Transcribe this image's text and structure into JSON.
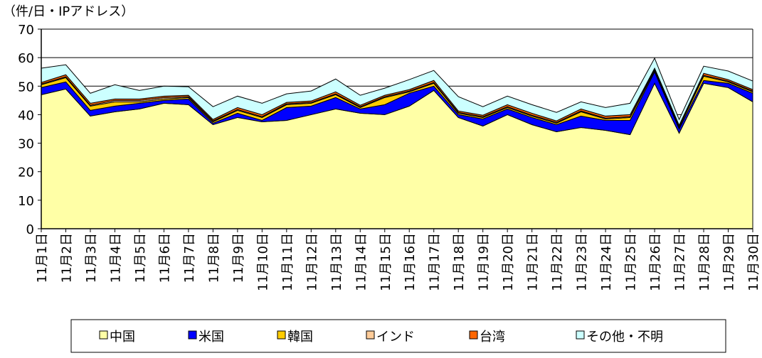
{
  "chart_data": {
    "type": "stacked_area",
    "y_axis_label": "（件/日・IPアドレス）",
    "categories": [
      "11月1日",
      "11月2日",
      "11月3日",
      "11月4日",
      "11月5日",
      "11月6日",
      "11月7日",
      "11月8日",
      "11月9日",
      "11月10日",
      "11月11日",
      "11月12日",
      "11月13日",
      "11月14日",
      "11月15日",
      "11月16日",
      "11月17日",
      "11月18日",
      "11月19日",
      "11月20日",
      "11月21日",
      "11月22日",
      "11月23日",
      "11月24日",
      "11月25日",
      "11月26日",
      "11月27日",
      "11月28日",
      "11月29日",
      "11月30日"
    ],
    "series": [
      {
        "name": "中国",
        "color": "#ffffa6",
        "values": [
          47,
          49,
          39.5,
          41,
          42,
          44,
          43.5,
          36.5,
          39,
          37.5,
          38,
          40,
          42,
          40.5,
          40,
          43,
          48.5,
          39,
          36,
          40,
          36.5,
          34,
          35.5,
          34.5,
          33,
          51,
          33.5,
          51,
          49.5,
          44.5
        ]
      },
      {
        "name": "米国",
        "color": "#0000ff",
        "values": [
          2.5,
          2.5,
          2,
          2,
          2,
          1,
          2,
          0.5,
          1.5,
          0.5,
          4.5,
          3,
          4,
          1.5,
          3.5,
          4.5,
          1.5,
          1,
          2.5,
          2,
          2.5,
          2.5,
          4,
          3.5,
          5,
          4,
          1.5,
          1,
          1.5,
          3
        ]
      },
      {
        "name": "韓国",
        "color": "#ffcc00",
        "values": [
          1,
          1.5,
          1.5,
          1.5,
          0.5,
          0.5,
          0.5,
          0.5,
          1,
          1,
          1,
          1,
          1,
          0.5,
          2.5,
          0.5,
          1,
          0.5,
          0.5,
          0.5,
          0.5,
          0.5,
          1.5,
          0.5,
          1,
          0.5,
          0.5,
          1.5,
          0.5,
          0.5
        ]
      },
      {
        "name": "インド",
        "color": "#ffcc99",
        "values": [
          0.3,
          0.3,
          0.3,
          0.5,
          0.5,
          0.5,
          0.3,
          0.3,
          0.3,
          0.3,
          0.3,
          0.3,
          0.3,
          0.3,
          0.3,
          0.3,
          0.3,
          0.3,
          0.3,
          0.3,
          0.3,
          0.3,
          0.3,
          0.3,
          0.3,
          0.3,
          0.3,
          0.3,
          0.3,
          0.3
        ]
      },
      {
        "name": "台湾",
        "color": "#ff6600",
        "values": [
          0.5,
          0.7,
          0.7,
          0.5,
          0.5,
          0.5,
          0.5,
          0.5,
          0.7,
          0.7,
          0.5,
          0.5,
          0.7,
          0.5,
          0.5,
          0.5,
          0.7,
          0.5,
          0.5,
          0.7,
          0.7,
          0.5,
          0.7,
          0.7,
          0.7,
          0.5,
          0.5,
          0.7,
          0.5,
          0.5
        ]
      },
      {
        "name": "その他・不明",
        "color": "#ccffff",
        "values": [
          5,
          3.5,
          3.5,
          5,
          3,
          3.5,
          3,
          4.5,
          4,
          4,
          3,
          3.5,
          4.5,
          3.5,
          2.5,
          3.5,
          3.5,
          5,
          3,
          3,
          3,
          3,
          2.5,
          3,
          4,
          3.5,
          2,
          2.5,
          3,
          3
        ]
      }
    ],
    "ylim": [
      0,
      70
    ],
    "yticks": [
      0,
      10,
      20,
      30,
      40,
      50,
      60,
      70
    ],
    "grid": true
  }
}
